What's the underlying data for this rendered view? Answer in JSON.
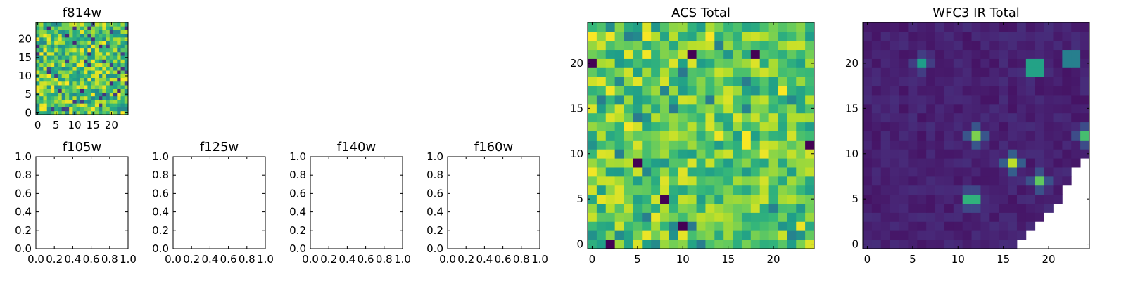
{
  "chart_data": [
    {
      "id": "f814w",
      "type": "heatmap",
      "title": "f814w",
      "grid_size": 25,
      "xlim": [
        -0.5,
        24.5
      ],
      "ylim": [
        -0.5,
        24.5
      ],
      "xticks": [
        0,
        5,
        10,
        15,
        20
      ],
      "yticks": [
        0,
        5,
        10,
        15,
        20
      ],
      "xtick_labels": [
        "0",
        "5",
        "10",
        "15",
        "20"
      ],
      "ytick_labels": [
        "0",
        "5",
        "10",
        "15",
        "20"
      ],
      "colormap": "viridis",
      "values_note": "25×25 pixel map of randomly varying intensity; individual pixel values are not printed",
      "origin": "lower"
    },
    {
      "id": "f105w",
      "type": "heatmap",
      "title": "f105w",
      "empty": true,
      "xlim": [
        0.0,
        1.0
      ],
      "ylim": [
        0.0,
        1.0
      ],
      "xticks": [
        0.0,
        0.2,
        0.4,
        0.6,
        0.8,
        1.0
      ],
      "yticks": [
        0.0,
        0.2,
        0.4,
        0.6,
        0.8,
        1.0
      ],
      "xtick_labels": [
        "0.0",
        "0.2",
        "0.4",
        "0.6",
        "0.8",
        "1.0"
      ],
      "ytick_labels": [
        "0.0",
        "0.2",
        "0.4",
        "0.6",
        "0.8",
        "1.0"
      ]
    },
    {
      "id": "f125w",
      "type": "heatmap",
      "title": "f125w",
      "empty": true,
      "xlim": [
        0.0,
        1.0
      ],
      "ylim": [
        0.0,
        1.0
      ],
      "xticks": [
        0.0,
        0.2,
        0.4,
        0.6,
        0.8,
        1.0
      ],
      "yticks": [
        0.0,
        0.2,
        0.4,
        0.6,
        0.8,
        1.0
      ],
      "xtick_labels": [
        "0.0",
        "0.2",
        "0.4",
        "0.6",
        "0.8",
        "1.0"
      ],
      "ytick_labels": [
        "0.0",
        "0.2",
        "0.4",
        "0.6",
        "0.8",
        "1.0"
      ]
    },
    {
      "id": "f140w",
      "type": "heatmap",
      "title": "f140w",
      "empty": true,
      "xlim": [
        0.0,
        1.0
      ],
      "ylim": [
        0.0,
        1.0
      ],
      "xticks": [
        0.0,
        0.2,
        0.4,
        0.6,
        0.8,
        1.0
      ],
      "yticks": [
        0.0,
        0.2,
        0.4,
        0.6,
        0.8,
        1.0
      ],
      "xtick_labels": [
        "0.0",
        "0.2",
        "0.4",
        "0.6",
        "0.8",
        "1.0"
      ],
      "ytick_labels": [
        "0.0",
        "0.2",
        "0.4",
        "0.6",
        "0.8",
        "1.0"
      ]
    },
    {
      "id": "f160w",
      "type": "heatmap",
      "title": "f160w",
      "empty": true,
      "xlim": [
        0.0,
        1.0
      ],
      "ylim": [
        0.0,
        1.0
      ],
      "xticks": [
        0.0,
        0.2,
        0.4,
        0.6,
        0.8,
        1.0
      ],
      "yticks": [
        0.0,
        0.2,
        0.4,
        0.6,
        0.8,
        1.0
      ],
      "xtick_labels": [
        "0.0",
        "0.2",
        "0.4",
        "0.6",
        "0.8",
        "1.0"
      ],
      "ytick_labels": [
        "0.0",
        "0.2",
        "0.4",
        "0.6",
        "0.8",
        "1.0"
      ]
    },
    {
      "id": "acs-total",
      "type": "heatmap",
      "title": "ACS Total",
      "grid_size": 25,
      "xlim": [
        -0.5,
        24.5
      ],
      "ylim": [
        -0.5,
        24.5
      ],
      "xticks": [
        0,
        5,
        10,
        15,
        20
      ],
      "yticks": [
        0,
        5,
        10,
        15,
        20
      ],
      "xtick_labels": [
        "0",
        "5",
        "10",
        "15",
        "20"
      ],
      "ytick_labels": [
        "0",
        "5",
        "10",
        "15",
        "20"
      ],
      "colormap": "viridis",
      "values_note": "25×25 pixel map, mostly mid-to-high intensity with scattered dark pixels",
      "dark_pixels": [
        [
          0,
          20
        ],
        [
          5,
          9
        ],
        [
          2,
          0
        ],
        [
          8,
          5
        ],
        [
          11,
          21
        ],
        [
          18,
          21
        ],
        [
          24,
          11
        ],
        [
          10,
          2
        ]
      ],
      "origin": "lower"
    },
    {
      "id": "wfc3-ir-total",
      "type": "heatmap",
      "title": "WFC3 IR Total",
      "grid_size": 25,
      "xlim": [
        -0.5,
        24.5
      ],
      "ylim": [
        -0.5,
        24.5
      ],
      "xticks": [
        0,
        5,
        10,
        15,
        20
      ],
      "yticks": [
        0,
        5,
        10,
        15,
        20
      ],
      "xtick_labels": [
        "0",
        "5",
        "10",
        "15",
        "20"
      ],
      "ytick_labels": [
        "0",
        "5",
        "10",
        "15",
        "20"
      ],
      "colormap": "viridis",
      "values_note": "25×25 pixel map, mostly low intensity with a few bright compact sources; lower-right corner is masked (NaN)",
      "bright_sources": [
        {
          "x": 6,
          "y": 20,
          "level": 0.55
        },
        {
          "x": 18.5,
          "y": 19.5,
          "level": 1.0
        },
        {
          "x": 22.5,
          "y": 20.5,
          "level": 0.75
        },
        {
          "x": 12,
          "y": 12,
          "level": 0.8
        },
        {
          "x": 16,
          "y": 9,
          "level": 0.9
        },
        {
          "x": 19,
          "y": 7,
          "level": 0.75
        },
        {
          "x": 11.5,
          "y": 5,
          "level": 0.85
        },
        {
          "x": 24,
          "y": 12,
          "level": 0.7
        }
      ],
      "masked_region_note": "staircase of empty pixels in the lower-right corner, from x≈17 at y=0 up to x=24 at y≈9",
      "origin": "lower"
    }
  ]
}
